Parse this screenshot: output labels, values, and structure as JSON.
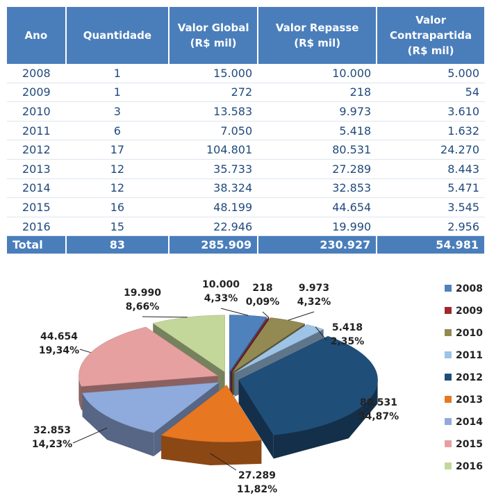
{
  "table": {
    "header": [
      "Ano",
      "Quantidade",
      "Valor Global\n(R$ mil)",
      "Valor Repasse\n(R$ mil)",
      "Valor\nContrapartida\n(R$ mil)"
    ],
    "rows": [
      [
        "2008",
        "1",
        "15.000",
        "10.000",
        "5.000"
      ],
      [
        "2009",
        "1",
        "272",
        "218",
        "54"
      ],
      [
        "2010",
        "3",
        "13.583",
        "9.973",
        "3.610"
      ],
      [
        "2011",
        "6",
        "7.050",
        "5.418",
        "1.632"
      ],
      [
        "2012",
        "17",
        "104.801",
        "80.531",
        "24.270"
      ],
      [
        "2013",
        "12",
        "35.733",
        "27.289",
        "8.443"
      ],
      [
        "2014",
        "12",
        "38.324",
        "32.853",
        "5.471"
      ],
      [
        "2015",
        "16",
        "48.199",
        "44.654",
        "3.545"
      ],
      [
        "2016",
        "15",
        "22.946",
        "19.990",
        "2.956"
      ]
    ],
    "total": [
      "Total",
      "83",
      "285.909",
      "230.927",
      "54.981"
    ]
  },
  "chart_data": {
    "type": "pie",
    "categories": [
      "2008",
      "2009",
      "2010",
      "2011",
      "2012",
      "2013",
      "2014",
      "2015",
      "2016"
    ],
    "values": [
      10000,
      218,
      9973,
      5418,
      80531,
      27289,
      32853,
      44654,
      19990
    ],
    "value_labels": [
      "10.000",
      "218",
      "9.973",
      "5.418",
      "80.531",
      "27.289",
      "32.853",
      "44.654",
      "19.990"
    ],
    "percentages": [
      4.33,
      0.09,
      4.32,
      2.35,
      34.87,
      11.82,
      14.23,
      19.34,
      8.66
    ],
    "percentage_labels": [
      "4,33%",
      "0,09%",
      "4,32%",
      "2,35%",
      "34,87%",
      "11,82%",
      "14,23%",
      "19,34%",
      "8,66%"
    ],
    "colors": [
      "#4f81bd",
      "#a0282b",
      "#938953",
      "#9dc3e6",
      "#1f4e79",
      "#e87722",
      "#8faadc",
      "#e6a0a0",
      "#c4d79b"
    ],
    "legend": "right"
  }
}
